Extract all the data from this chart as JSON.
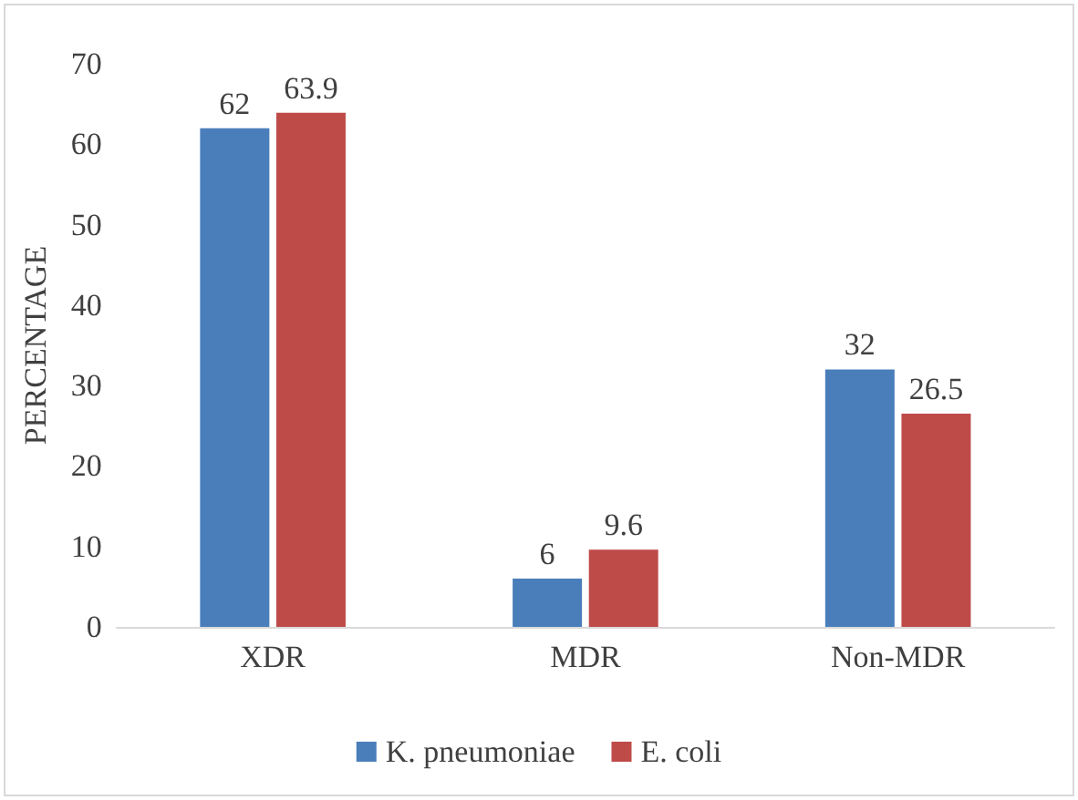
{
  "chart_data": {
    "type": "bar",
    "ylabel": "PERCENTAGE",
    "categories": [
      "XDR",
      "MDR",
      "Non-MDR"
    ],
    "series": [
      {
        "name": "K. pneumoniae",
        "color": "#4a7ebb",
        "values": [
          62,
          6,
          32
        ]
      },
      {
        "name": "E. coli",
        "color": "#be4b48",
        "values": [
          63.9,
          9.6,
          26.5
        ]
      }
    ],
    "ylim": [
      0,
      70
    ],
    "yticks": [
      0,
      10,
      20,
      30,
      40,
      50,
      60,
      70
    ],
    "grid": false,
    "legend": "bottom",
    "data_labels": true
  }
}
